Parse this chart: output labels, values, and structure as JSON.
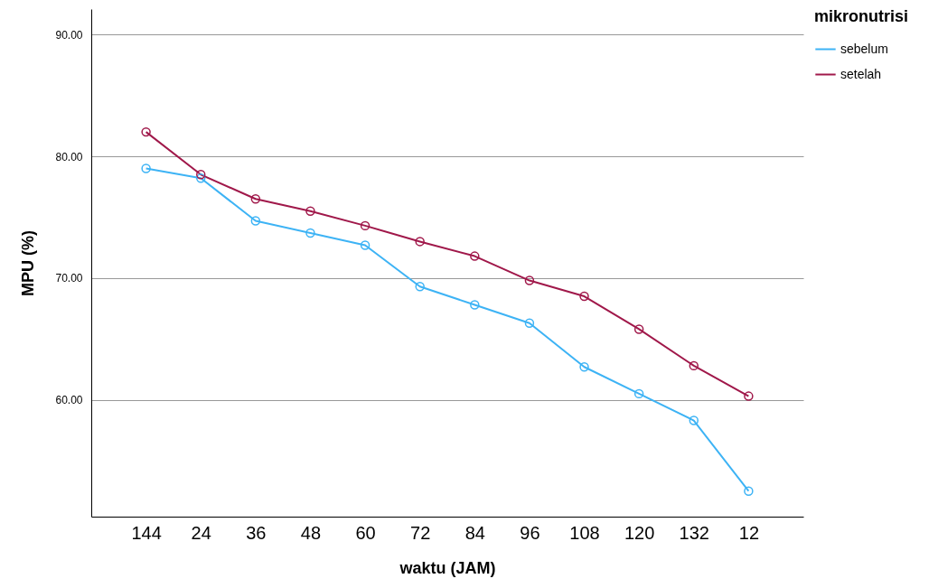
{
  "chart_data": {
    "type": "line",
    "xlabel": "waktu (JAM)",
    "ylabel": "MPU (%)",
    "legend_title": "mikronutrisi",
    "categories": [
      "144",
      "24",
      "36",
      "48",
      "60",
      "72",
      "84",
      "96",
      "108",
      "120",
      "132",
      "12"
    ],
    "series": [
      {
        "name": "sebelum",
        "color": "#3db3f5",
        "values": [
          79.0,
          78.2,
          74.7,
          73.7,
          72.7,
          69.3,
          67.8,
          66.3,
          62.7,
          60.5,
          58.3,
          52.5
        ]
      },
      {
        "name": "setelah",
        "color": "#a0184a",
        "values": [
          82.0,
          78.5,
          76.5,
          75.5,
          74.3,
          73.0,
          71.8,
          69.8,
          68.5,
          65.8,
          62.8,
          60.3
        ]
      }
    ],
    "ylim": [
      50.4,
      92.1
    ],
    "yticks": [
      {
        "value": 60,
        "label": "60.00"
      },
      {
        "value": 70,
        "label": "70.00"
      },
      {
        "value": 80,
        "label": "80.00"
      },
      {
        "value": 90,
        "label": "90.00"
      }
    ],
    "grid": "y",
    "legend": "top right",
    "marker": "circle",
    "line_style": "solid"
  }
}
